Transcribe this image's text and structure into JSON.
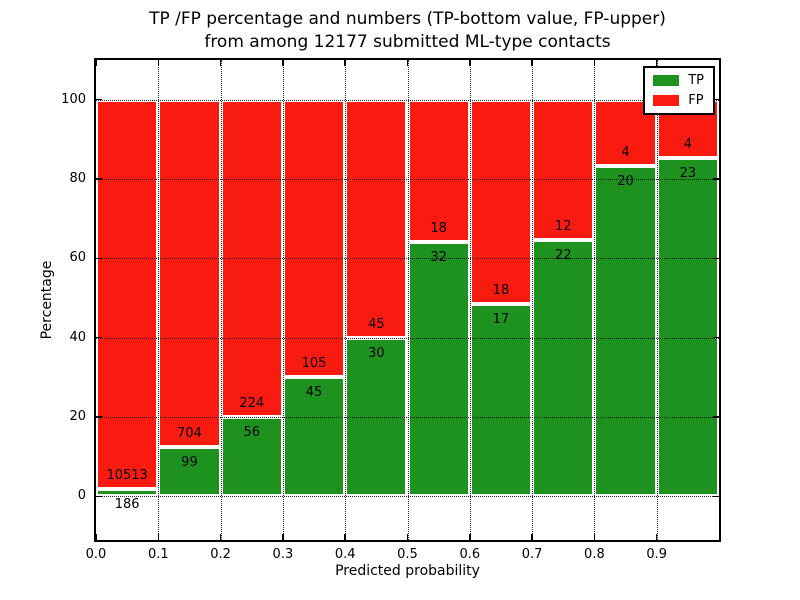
{
  "title": {
    "line1": "TP /FP percentage and numbers (TP-bottom value, FP-upper)",
    "line2": "from among 12177 submitted ML-type contacts"
  },
  "chart_data": {
    "type": "bar",
    "stacked": true,
    "title": "TP /FP percentage and numbers (TP-bottom value, FP-upper)\nfrom among 12177 submitted ML-type contacts",
    "xlabel": "Predicted probability",
    "ylabel": "Percentage",
    "xlim": [
      0.0,
      1.0
    ],
    "ylim": [
      -11,
      110
    ],
    "xticks": [
      0.0,
      0.1,
      0.2,
      0.3,
      0.4,
      0.5,
      0.6,
      0.7,
      0.8,
      0.9
    ],
    "xtick_labels": [
      "0.0",
      "0.1",
      "0.2",
      "0.3",
      "0.4",
      "0.5",
      "0.6",
      "0.7",
      "0.8",
      "0.9"
    ],
    "yticks": [
      0,
      20,
      40,
      60,
      80,
      100
    ],
    "grid": true,
    "grid_style": "dotted",
    "legend_position": "upper right",
    "total_contacts": 12177,
    "bin_width": 0.1,
    "bins": [
      {
        "x_start": 0.0,
        "x_end": 0.1,
        "tp_count": 186,
        "fp_count": 10513
      },
      {
        "x_start": 0.1,
        "x_end": 0.2,
        "tp_count": 99,
        "fp_count": 704
      },
      {
        "x_start": 0.2,
        "x_end": 0.3,
        "tp_count": 56,
        "fp_count": 224
      },
      {
        "x_start": 0.3,
        "x_end": 0.4,
        "tp_count": 45,
        "fp_count": 105
      },
      {
        "x_start": 0.4,
        "x_end": 0.5,
        "tp_count": 30,
        "fp_count": 45
      },
      {
        "x_start": 0.5,
        "x_end": 0.6,
        "tp_count": 32,
        "fp_count": 18
      },
      {
        "x_start": 0.6,
        "x_end": 0.7,
        "tp_count": 17,
        "fp_count": 18
      },
      {
        "x_start": 0.7,
        "x_end": 0.8,
        "tp_count": 22,
        "fp_count": 12
      },
      {
        "x_start": 0.8,
        "x_end": 0.9,
        "tp_count": 20,
        "fp_count": 4
      },
      {
        "x_start": 0.9,
        "x_end": 1.0,
        "tp_count": 23,
        "fp_count": 4
      }
    ],
    "series": [
      {
        "name": "TP",
        "color": "#1e921e",
        "values_pct": [
          1.74,
          12.33,
          20.0,
          30.0,
          40.0,
          64.0,
          48.57,
          64.71,
          83.33,
          85.19
        ]
      },
      {
        "name": "FP",
        "color": "#fa1b10",
        "values_pct": [
          98.26,
          87.67,
          80.0,
          70.0,
          60.0,
          36.0,
          51.43,
          35.29,
          16.67,
          14.81
        ]
      }
    ],
    "colors": {
      "tp": "#1e921e",
      "fp": "#fa1b10",
      "bar_edge": "#ffffff",
      "grid": "#000000",
      "spine": "#000000",
      "background": "#ffffff",
      "text": "#000000"
    }
  },
  "legend": {
    "items": [
      {
        "label": "TP",
        "color": "#1e921e"
      },
      {
        "label": "FP",
        "color": "#fa1b10"
      }
    ]
  }
}
